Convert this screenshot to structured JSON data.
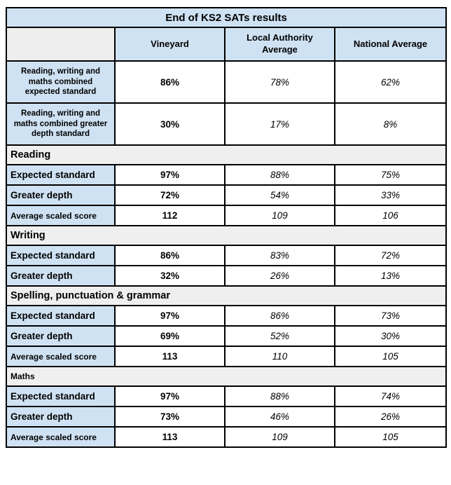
{
  "chart_data": {
    "type": "table",
    "title": "End of KS2 SATs results",
    "columns": [
      "",
      "Vineyard",
      "Local Authority Average",
      "National Average"
    ],
    "sections": [
      {
        "rows": [
          {
            "label": "Reading, writing and maths combined expected standard",
            "values": [
              "86%",
              "78%",
              "62%"
            ]
          },
          {
            "label": "Reading, writing and maths combined greater depth standard",
            "values": [
              "30%",
              "17%",
              "8%"
            ]
          }
        ]
      },
      {
        "header": "Reading",
        "rows": [
          {
            "label": "Expected standard",
            "values": [
              "97%",
              "88%",
              "75%"
            ]
          },
          {
            "label": "Greater depth",
            "values": [
              "72%",
              "54%",
              "33%"
            ]
          },
          {
            "label": "Average scaled score",
            "values": [
              "112",
              "109",
              "106"
            ]
          }
        ]
      },
      {
        "header": "Writing",
        "rows": [
          {
            "label": "Expected standard",
            "values": [
              "86%",
              "83%",
              "72%"
            ]
          },
          {
            "label": "Greater depth",
            "values": [
              "32%",
              "26%",
              "13%"
            ]
          }
        ]
      },
      {
        "header": "Spelling, punctuation & grammar",
        "rows": [
          {
            "label": "Expected standard",
            "values": [
              "97%",
              "86%",
              "73%"
            ]
          },
          {
            "label": "Greater depth",
            "values": [
              "69%",
              "52%",
              "30%"
            ]
          },
          {
            "label": "Average scaled score",
            "values": [
              "113",
              "110",
              "105"
            ]
          }
        ]
      },
      {
        "header": "Maths",
        "rows": [
          {
            "label": "Expected standard",
            "values": [
              "97%",
              "88%",
              "74%"
            ]
          },
          {
            "label": "Greater depth",
            "values": [
              "73%",
              "46%",
              "26%"
            ]
          },
          {
            "label": "Average scaled score",
            "values": [
              "113",
              "109",
              "105"
            ]
          }
        ]
      }
    ]
  },
  "colors": {
    "cell_blue": "#cfe2f3",
    "band_gray": "#efefef",
    "empty_header_gray": "#eeeeee",
    "border": "#000000",
    "text": "#000000"
  }
}
